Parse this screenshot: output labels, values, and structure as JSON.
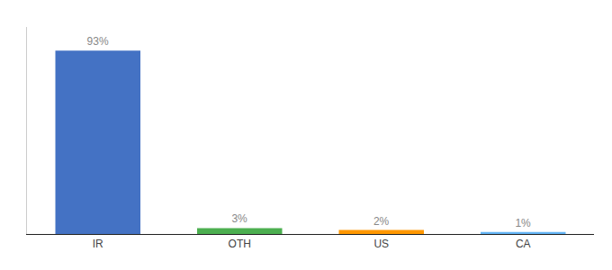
{
  "chart_data": {
    "type": "bar",
    "categories": [
      "IR",
      "OTH",
      "US",
      "CA"
    ],
    "values": [
      93,
      3,
      2,
      1
    ],
    "value_labels": [
      "93%",
      "3%",
      "2%",
      "1%"
    ],
    "colors": [
      "#4472c4",
      "#4caf50",
      "#ff9800",
      "#64b5f6"
    ],
    "data_labels": true,
    "ylim": [
      0,
      105
    ],
    "tick_labels": "x",
    "grid": false
  }
}
